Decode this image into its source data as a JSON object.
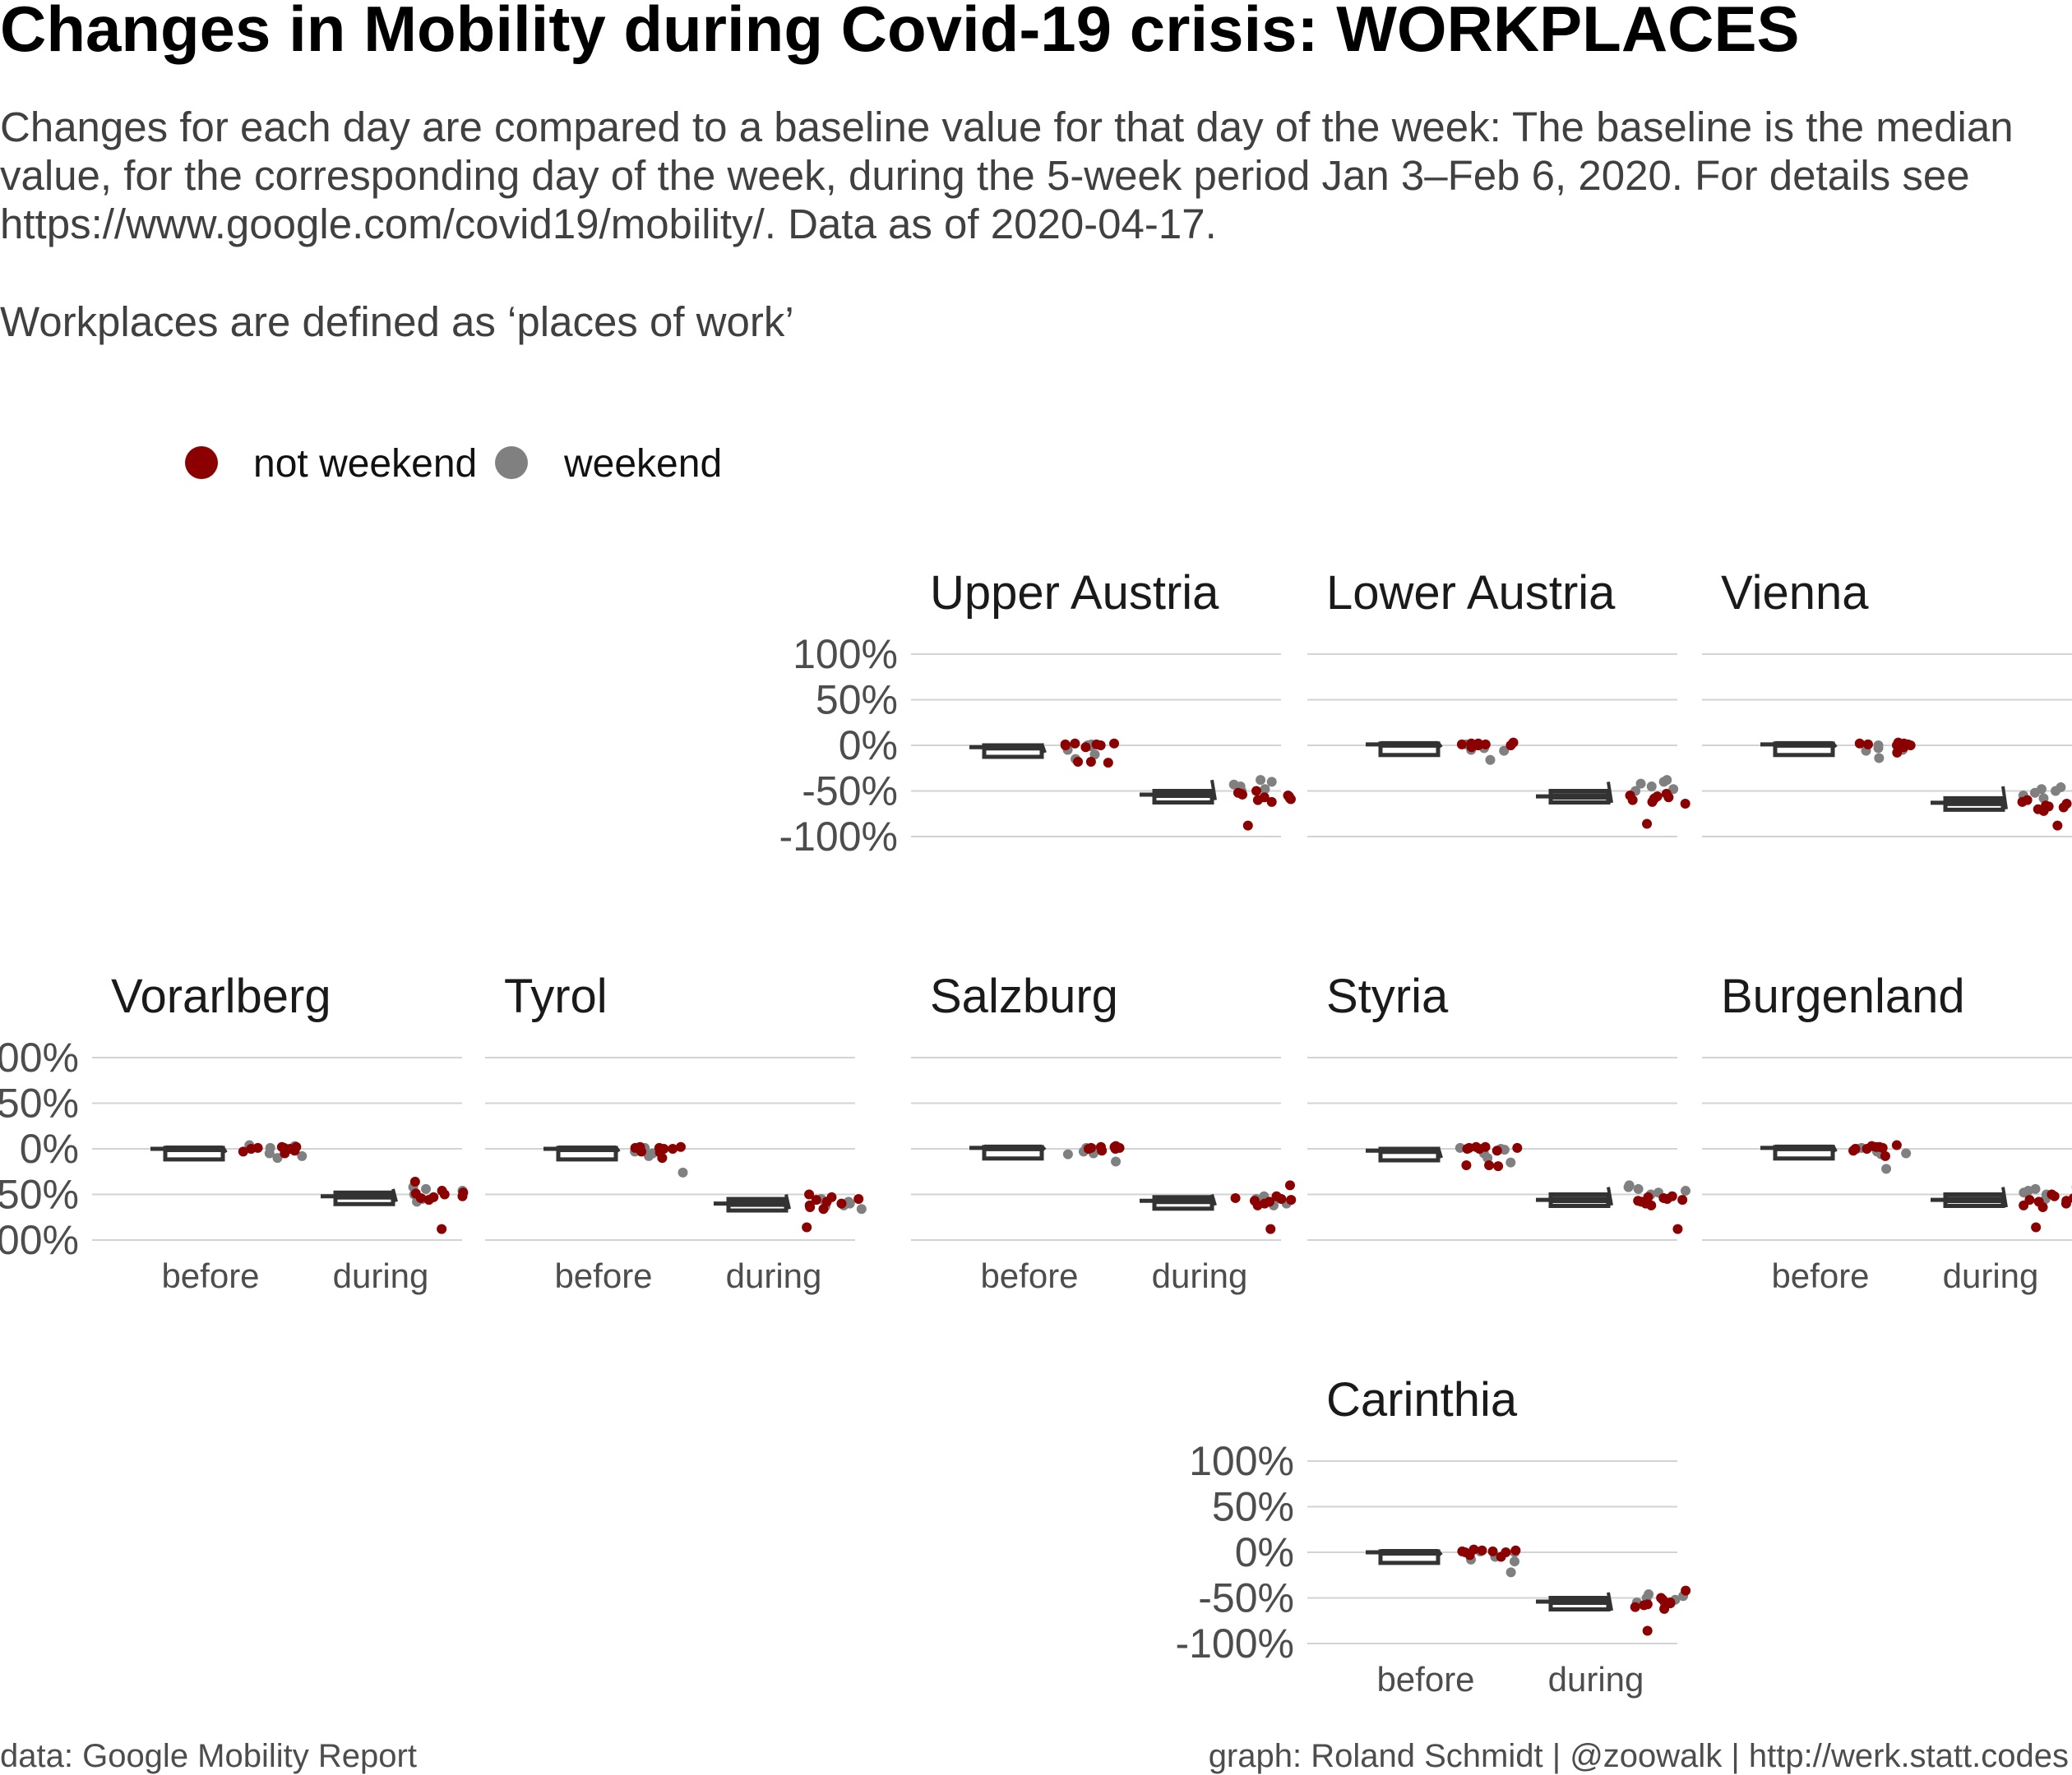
{
  "title": "Changes in Mobility during Covid-19 crisis: WORKPLACES",
  "subtitle_lines": [
    "Changes for each day are compared to a baseline value for that day of the week: The baseline is the median",
    "value, for the corresponding day of the week, during the 5-week period Jan 3–Feb 6, 2020. For details see",
    "https://www.google.com/covid19/mobility/. Data as of 2020-04-17.",
    "",
    "Workplaces are defined as ‘places of work’"
  ],
  "caption_left": "data: Google Mobility Report",
  "caption_right": "graph: Roland Schmidt | @zoowalk | http://werk.statt.codes",
  "colors": {
    "not_weekend": "#8b0000",
    "weekend": "#808080",
    "box": "#333333",
    "grid": "#d3d3d3"
  },
  "legend": [
    {
      "label": "not weekend",
      "color": "#8b0000"
    },
    {
      "label": "weekend",
      "color": "#808080"
    }
  ],
  "chart_data": {
    "type": "boxplot-jitter",
    "facet_grid": "map of Austrian states",
    "categories": [
      "before",
      "during"
    ],
    "ylim": [
      -100,
      100
    ],
    "yticks": [
      100,
      50,
      0,
      -50,
      -100
    ],
    "ytick_labels": [
      "100%",
      "50%",
      "0%",
      "-50%",
      "-100%"
    ],
    "facets": [
      {
        "name": "Upper Austria",
        "row": 0,
        "col": 2,
        "show_y": true,
        "show_x": false,
        "box": {
          "before": [
            -8,
            -4,
            -2,
            0,
            2
          ],
          "during": [
            -60,
            -58,
            -54,
            -50,
            -38
          ]
        },
        "points": {
          "before": {
            "not_weekend": [
              0,
              2,
              1,
              -2,
              -18,
              -19,
              0,
              1,
              -18,
              2
            ],
            "weekend": [
              -1,
              -10,
              -5,
              -15,
              0,
              1
            ]
          },
          "during": {
            "not_weekend": [
              -55,
              -58,
              -52,
              -60,
              -56,
              -54,
              -50,
              -57,
              -62,
              -88,
              -53,
              -59
            ],
            "weekend": [
              -40,
              -45,
              -48,
              -38,
              -50,
              -43
            ]
          }
        }
      },
      {
        "name": "Lower Austria",
        "row": 0,
        "col": 3,
        "show_y": false,
        "show_x": false,
        "box": {
          "before": [
            -2,
            0,
            1,
            2,
            3
          ],
          "during": [
            -63,
            -60,
            -56,
            -50,
            -40
          ]
        },
        "points": {
          "before": {
            "not_weekend": [
              0,
              2,
              1,
              3,
              -2,
              0,
              1,
              2
            ],
            "weekend": [
              -3,
              -5,
              -16,
              0,
              1,
              -6
            ]
          },
          "during": {
            "not_weekend": [
              -58,
              -60,
              -55,
              -62,
              -57,
              -53,
              -64,
              -86,
              -59,
              -56
            ],
            "weekend": [
              -40,
              -45,
              -48,
              -38,
              -50,
              -42
            ]
          }
        }
      },
      {
        "name": "Vienna",
        "row": 0,
        "col": 4,
        "show_y": false,
        "show_x": false,
        "box": {
          "before": [
            -2,
            0,
            1,
            2,
            3
          ],
          "during": [
            -70,
            -68,
            -63,
            -58,
            -45
          ]
        },
        "points": {
          "before": {
            "not_weekend": [
              0,
              2,
              1,
              3,
              -2,
              0,
              1,
              2,
              -8
            ],
            "weekend": [
              -3,
              -5,
              -14,
              0,
              1,
              -6
            ]
          },
          "during": {
            "not_weekend": [
              -66,
              -68,
              -64,
              -70,
              -65,
              -62,
              -72,
              -88,
              -67,
              -60
            ],
            "weekend": [
              -46,
              -50,
              -55,
              -48,
              -58,
              -52
            ]
          }
        }
      },
      {
        "name": "Vorarlberg",
        "row": 1,
        "col": 0,
        "show_y": true,
        "show_x": true,
        "box": {
          "before": [
            -4,
            -2,
            0,
            1,
            2
          ],
          "during": [
            -58,
            -56,
            -52,
            -48,
            -44
          ]
        },
        "points": {
          "before": {
            "not_weekend": [
              0,
              2,
              1,
              -3,
              0,
              -5,
              1,
              2,
              -2
            ],
            "weekend": [
              -8,
              -5,
              3,
              -10,
              1,
              4
            ]
          },
          "during": {
            "not_weekend": [
              -50,
              -52,
              -48,
              -54,
              -46,
              -36,
              -56,
              -88,
              -49,
              -53
            ],
            "weekend": [
              -44,
              -46,
              -55,
              -50,
              -58,
              -42
            ]
          }
        }
      },
      {
        "name": "Tyrol",
        "row": 1,
        "col": 1,
        "show_y": false,
        "show_x": true,
        "box": {
          "before": [
            -3,
            -1,
            0,
            1,
            2
          ],
          "during": [
            -66,
            -64,
            -60,
            -55,
            -50
          ]
        },
        "points": {
          "before": {
            "not_weekend": [
              0,
              2,
              1,
              -3,
              0,
              -4,
              1,
              2,
              -10
            ],
            "weekend": [
              -8,
              -5,
              -26,
              0,
              1,
              -3
            ]
          },
          "during": {
            "not_weekend": [
              -58,
              -62,
              -55,
              -64,
              -50,
              -56,
              -66,
              -86,
              -60,
              -53
            ],
            "weekend": [
              -60,
              -63,
              -66,
              -58,
              -62,
              -55
            ]
          }
        }
      },
      {
        "name": "Salzburg",
        "row": 1,
        "col": 2,
        "show_y": false,
        "show_x": true,
        "box": {
          "before": [
            -1,
            0,
            1,
            2,
            3
          ],
          "during": [
            -62,
            -60,
            -57,
            -53,
            -50
          ]
        },
        "points": {
          "before": {
            "not_weekend": [
              0,
              2,
              1,
              3,
              -2,
              0,
              1,
              2
            ],
            "weekend": [
              -3,
              -5,
              -14,
              0,
              1,
              -6
            ]
          },
          "during": {
            "not_weekend": [
              -56,
              -58,
              -55,
              -62,
              -54,
              -40,
              -60,
              -88,
              -57,
              -52
            ],
            "weekend": [
              -55,
              -58,
              -62,
              -54,
              -60,
              -52
            ]
          }
        }
      },
      {
        "name": "Styria",
        "row": 1,
        "col": 3,
        "show_y": false,
        "show_x": false,
        "box": {
          "before": [
            -10,
            -5,
            -2,
            0,
            2
          ],
          "during": [
            -62,
            -60,
            -56,
            -50,
            -42
          ]
        },
        "points": {
          "before": {
            "not_weekend": [
              0,
              2,
              1,
              -2,
              -18,
              -19,
              0,
              1,
              -18,
              2
            ],
            "weekend": [
              -1,
              -10,
              -5,
              -15,
              0,
              1
            ]
          },
          "during": {
            "not_weekend": [
              -55,
              -58,
              -52,
              -60,
              -56,
              -54,
              -62,
              -88,
              -57,
              -53
            ],
            "weekend": [
              -42,
              -46,
              -48,
              -40,
              -50,
              -44
            ]
          }
        }
      },
      {
        "name": "Burgenland",
        "row": 1,
        "col": 4,
        "show_y": false,
        "show_x": true,
        "box": {
          "before": [
            -3,
            -1,
            1,
            2,
            4
          ],
          "during": [
            -64,
            -60,
            -56,
            -50,
            -42
          ]
        },
        "points": {
          "before": {
            "not_weekend": [
              0,
              2,
              1,
              3,
              -2,
              0,
              4,
              2,
              -8
            ],
            "weekend": [
              -3,
              -5,
              -22,
              0,
              1,
              -6
            ]
          },
          "during": {
            "not_weekend": [
              -56,
              -60,
              -54,
              -62,
              -52,
              -58,
              -64,
              -86,
              -57,
              -50
            ],
            "weekend": [
              -42,
              -46,
              -50,
              -44,
              -55,
              -48
            ]
          }
        }
      },
      {
        "name": "Carinthia",
        "row": 2,
        "col": 3,
        "show_y": true,
        "show_x": true,
        "box": {
          "before": [
            -3,
            -1,
            0,
            1,
            2
          ],
          "during": [
            -64,
            -60,
            -54,
            -50,
            -44
          ]
        },
        "points": {
          "before": {
            "not_weekend": [
              0,
              2,
              1,
              -3,
              0,
              -5,
              1,
              2,
              3
            ],
            "weekend": [
              -8,
              -5,
              -22,
              0,
              1,
              -10
            ]
          },
          "during": {
            "not_weekend": [
              -55,
              -58,
              -52,
              -60,
              -56,
              -42,
              -62,
              -86,
              -57,
              -50
            ],
            "weekend": [
              -46,
              -50,
              -55,
              -48,
              -58,
              -52
            ]
          }
        }
      }
    ]
  }
}
